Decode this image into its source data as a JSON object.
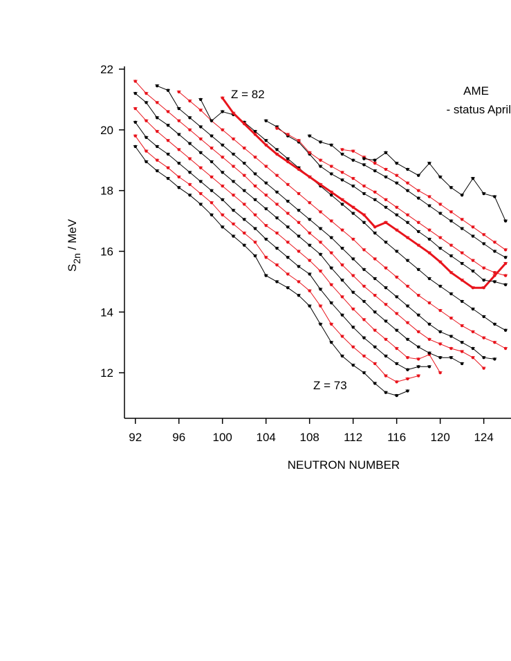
{
  "chart_data": {
    "type": "line",
    "x_label": "NEUTRON NUMBER",
    "y_label": [
      "S",
      "2n",
      " / MeV"
    ],
    "annotations": [
      "Z = 82",
      "Z = 73",
      "AME",
      "- status April"
    ],
    "x": [
      92,
      93,
      94,
      95,
      96,
      97,
      98,
      99,
      100,
      101,
      102,
      103,
      104,
      105,
      106,
      107,
      108,
      109,
      110,
      111,
      112,
      113,
      114,
      115,
      116,
      117,
      118,
      119,
      120,
      121,
      122,
      123,
      124,
      125,
      126
    ],
    "xlim": [
      91,
      126.5
    ],
    "xticks": [
      92,
      96,
      100,
      104,
      108,
      112,
      116,
      120,
      124
    ],
    "ylim": [
      10.5,
      22
    ],
    "yticks": [
      12,
      14,
      16,
      18,
      20,
      22
    ],
    "series": [
      {
        "color": "#000000",
        "width": 1,
        "values": [
          19.45,
          18.95,
          18.65,
          18.4,
          18.1,
          17.85,
          17.55,
          17.2,
          16.8,
          16.5,
          16.2,
          15.85,
          15.2,
          15.0,
          14.8,
          14.55,
          14.2,
          13.6,
          13.0,
          12.55,
          12.25,
          12.0,
          11.65,
          11.35,
          11.25,
          11.4,
          null,
          null,
          null,
          null,
          null,
          null,
          null,
          null,
          null
        ]
      },
      {
        "color": "#e8141c",
        "width": 1,
        "values": [
          19.8,
          19.3,
          19.0,
          18.75,
          18.45,
          18.2,
          17.9,
          17.6,
          17.2,
          16.9,
          16.6,
          16.3,
          15.8,
          15.55,
          15.25,
          15.0,
          14.7,
          14.2,
          13.6,
          13.2,
          12.85,
          12.55,
          12.3,
          11.9,
          11.7,
          11.8,
          11.9,
          null,
          null,
          null,
          null,
          null,
          null,
          null,
          null
        ]
      },
      {
        "color": "#000000",
        "width": 1,
        "values": [
          20.25,
          19.75,
          19.45,
          19.2,
          18.9,
          18.6,
          18.3,
          18.0,
          17.7,
          17.35,
          17.05,
          16.75,
          16.4,
          16.1,
          15.8,
          15.5,
          15.25,
          14.75,
          14.3,
          13.9,
          13.5,
          13.15,
          12.85,
          12.55,
          12.3,
          12.1,
          12.2,
          12.2,
          null,
          null,
          null,
          null,
          null,
          null,
          null
        ]
      },
      {
        "color": "#e8141c",
        "width": 1,
        "values": [
          20.7,
          20.3,
          19.95,
          19.65,
          19.35,
          19.05,
          18.75,
          18.45,
          18.15,
          17.85,
          17.55,
          17.2,
          16.85,
          16.6,
          16.3,
          16.0,
          15.7,
          15.35,
          14.9,
          14.5,
          14.1,
          13.75,
          13.4,
          13.1,
          12.8,
          12.5,
          12.45,
          12.6,
          12.0,
          null,
          null,
          null,
          null,
          null,
          null
        ]
      },
      {
        "color": "#000000",
        "width": 1,
        "values": [
          21.2,
          20.9,
          20.4,
          20.15,
          19.85,
          19.55,
          19.25,
          18.95,
          18.6,
          18.3,
          18.0,
          17.7,
          17.4,
          17.1,
          16.8,
          16.5,
          16.2,
          15.9,
          15.45,
          15.05,
          14.65,
          14.35,
          14.0,
          13.7,
          13.4,
          13.1,
          12.85,
          12.65,
          12.5,
          12.5,
          12.3,
          null,
          null,
          null,
          null
        ]
      },
      {
        "color": "#e8141c",
        "width": 1,
        "values": [
          21.6,
          21.2,
          20.9,
          20.6,
          20.3,
          20.0,
          19.7,
          19.4,
          19.1,
          18.8,
          18.5,
          18.15,
          17.85,
          17.55,
          17.25,
          16.95,
          16.6,
          16.3,
          15.95,
          15.55,
          15.2,
          14.85,
          14.55,
          14.25,
          13.95,
          13.65,
          13.35,
          13.1,
          12.95,
          12.8,
          12.7,
          12.5,
          12.15,
          null,
          null
        ]
      },
      {
        "color": "#000000",
        "width": 1,
        "values": [
          null,
          null,
          21.45,
          21.3,
          20.7,
          20.4,
          20.1,
          19.8,
          19.5,
          19.2,
          18.9,
          18.55,
          18.25,
          17.95,
          17.65,
          17.35,
          17.05,
          16.75,
          16.45,
          16.1,
          15.75,
          15.4,
          15.1,
          14.8,
          14.5,
          14.2,
          13.9,
          13.6,
          13.35,
          13.2,
          13.0,
          12.8,
          12.5,
          12.45,
          null
        ]
      },
      {
        "color": "#e8141c",
        "width": 1,
        "values": [
          null,
          null,
          null,
          null,
          21.25,
          20.95,
          20.65,
          20.3,
          20.0,
          19.7,
          19.4,
          19.1,
          18.8,
          18.5,
          18.2,
          17.9,
          17.6,
          17.3,
          17.0,
          16.7,
          16.4,
          16.05,
          15.75,
          15.45,
          15.15,
          14.85,
          14.55,
          14.3,
          14.05,
          13.8,
          13.55,
          13.35,
          13.15,
          13.0,
          12.8
        ]
      },
      {
        "color": "#000000",
        "width": 1,
        "values": [
          null,
          null,
          null,
          null,
          null,
          null,
          21.0,
          20.3,
          20.6,
          20.5,
          20.25,
          19.95,
          19.65,
          19.35,
          19.05,
          18.75,
          18.45,
          18.15,
          17.85,
          17.55,
          17.25,
          16.95,
          16.6,
          16.3,
          16.0,
          15.7,
          15.4,
          15.1,
          14.85,
          14.6,
          14.35,
          14.1,
          13.85,
          13.6,
          13.4
        ]
      },
      {
        "color": "#e8141c",
        "width": 3,
        "values": [
          null,
          null,
          null,
          null,
          null,
          null,
          null,
          null,
          21.05,
          20.55,
          20.2,
          19.85,
          19.5,
          19.2,
          18.95,
          18.7,
          18.45,
          18.2,
          17.95,
          17.7,
          17.45,
          17.2,
          16.8,
          16.95,
          16.7,
          16.45,
          16.2,
          15.95,
          15.65,
          15.3,
          15.05,
          14.8,
          14.8,
          15.2,
          15.6
        ]
      },
      {
        "color": "#000000",
        "width": 1,
        "values": [
          null,
          null,
          null,
          null,
          null,
          null,
          null,
          null,
          null,
          null,
          null,
          null,
          20.3,
          20.1,
          19.8,
          19.6,
          19.2,
          18.8,
          18.55,
          18.35,
          18.15,
          17.9,
          17.7,
          17.45,
          17.2,
          16.95,
          16.65,
          16.4,
          16.1,
          15.85,
          15.6,
          15.35,
          15.05,
          15.0,
          14.9
        ]
      },
      {
        "color": "#e8141c",
        "width": 1,
        "values": [
          null,
          null,
          null,
          null,
          null,
          null,
          null,
          null,
          null,
          null,
          null,
          null,
          null,
          20.05,
          19.85,
          19.65,
          19.25,
          19.0,
          18.8,
          18.6,
          18.4,
          18.15,
          17.95,
          17.7,
          17.45,
          17.2,
          16.95,
          16.7,
          16.45,
          16.2,
          15.95,
          15.7,
          15.45,
          15.3,
          15.2
        ]
      },
      {
        "color": "#000000",
        "width": 1,
        "values": [
          null,
          null,
          null,
          null,
          null,
          null,
          null,
          null,
          null,
          null,
          null,
          null,
          null,
          null,
          null,
          null,
          19.8,
          19.6,
          19.5,
          19.2,
          19.0,
          18.85,
          18.65,
          18.45,
          18.25,
          18.0,
          17.75,
          17.5,
          17.25,
          17.0,
          16.75,
          16.5,
          16.25,
          16.0,
          15.8
        ]
      },
      {
        "color": "#e8141c",
        "width": 1,
        "values": [
          null,
          null,
          null,
          null,
          null,
          null,
          null,
          null,
          null,
          null,
          null,
          null,
          null,
          null,
          null,
          null,
          null,
          null,
          null,
          19.35,
          19.3,
          19.1,
          18.9,
          18.7,
          18.5,
          18.25,
          18.0,
          17.8,
          17.55,
          17.3,
          17.05,
          16.8,
          16.55,
          16.3,
          16.05
        ]
      },
      {
        "color": "#000000",
        "width": 1,
        "values": [
          null,
          null,
          null,
          null,
          null,
          null,
          null,
          null,
          null,
          null,
          null,
          null,
          null,
          null,
          null,
          null,
          null,
          null,
          null,
          null,
          null,
          19.05,
          19.0,
          19.25,
          18.9,
          18.7,
          18.5,
          18.9,
          18.45,
          18.1,
          17.85,
          18.4,
          17.9,
          17.8,
          17.0
        ]
      }
    ]
  }
}
